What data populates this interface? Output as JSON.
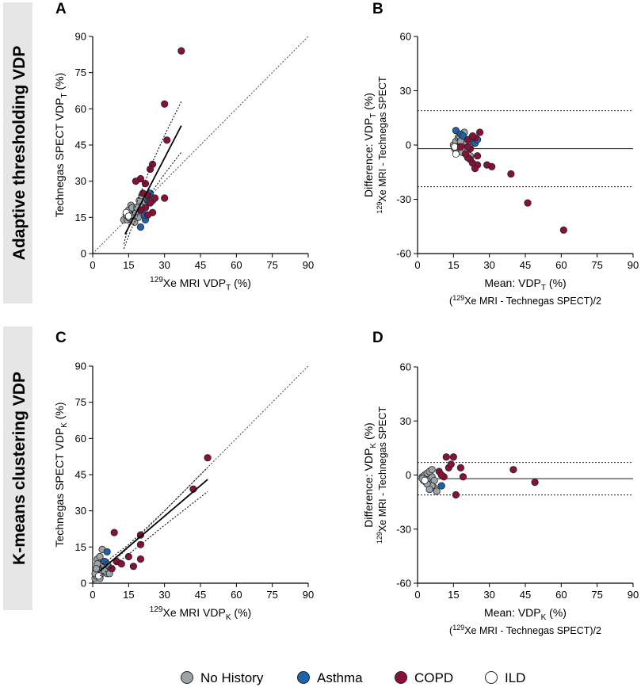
{
  "row_labels": {
    "top": "Adaptive thresholding VDP",
    "bottom": "K-means clustering VDP"
  },
  "colors": {
    "no_history": "#9ca4aa",
    "asthma": "#1c63ad",
    "copd": "#8a1038",
    "ild": "#ffffff",
    "row_band": "#e6e6e6"
  },
  "legend": {
    "items": [
      {
        "key": "no_history",
        "label": "No History"
      },
      {
        "key": "asthma",
        "label": "Asthma"
      },
      {
        "key": "copd",
        "label": "COPD"
      },
      {
        "key": "ild",
        "label": "ILD"
      }
    ]
  },
  "chart_data": [
    {
      "id": "A",
      "letter": "A",
      "type": "scatter",
      "title": "",
      "xlabel_pre": "129",
      "xlabel_main": "Xe MRI VDP",
      "xlabel_sub": "T",
      "xlabel_post": " (%)",
      "ylabel_main": "Technegas SPECT VDP",
      "ylabel_sub": "T",
      "ylabel_post": " (%)",
      "xlim": [
        0,
        90
      ],
      "ylim": [
        0,
        90
      ],
      "xticks": [
        0,
        15,
        30,
        45,
        60,
        75,
        90
      ],
      "yticks": [
        0,
        15,
        30,
        45,
        60,
        75,
        90
      ],
      "identity_line": true,
      "regression": {
        "x0": 13.5,
        "y0": 8,
        "x1": 37,
        "y1": 53
      },
      "ci_upper": [
        [
          13,
          4
        ],
        [
          16,
          15
        ],
        [
          20,
          25
        ],
        [
          25,
          38
        ],
        [
          30,
          49
        ],
        [
          37,
          63
        ]
      ],
      "ci_lower": [
        [
          13,
          2
        ],
        [
          16,
          10
        ],
        [
          20,
          18
        ],
        [
          25,
          26
        ],
        [
          30,
          33
        ],
        [
          37,
          42
        ]
      ],
      "points": {
        "no_history": [
          [
            13,
            14
          ],
          [
            14,
            16
          ],
          [
            15,
            18
          ],
          [
            16,
            20
          ],
          [
            14.5,
            14
          ],
          [
            16,
            14
          ],
          [
            17,
            16
          ],
          [
            18,
            17
          ],
          [
            17.5,
            13
          ],
          [
            19,
            15
          ],
          [
            20,
            18
          ],
          [
            21,
            20
          ],
          [
            19.5,
            22
          ],
          [
            20.5,
            24
          ],
          [
            22,
            21
          ],
          [
            16.5,
            19
          ],
          [
            18.5,
            19
          ],
          [
            15,
            15
          ]
        ],
        "asthma": [
          [
            20,
            11
          ],
          [
            22,
            14
          ],
          [
            24,
            25
          ],
          [
            21.5,
            16
          ],
          [
            23,
            22
          ],
          [
            25,
            22
          ]
        ],
        "copd": [
          [
            37,
            84
          ],
          [
            30,
            62
          ],
          [
            31,
            47
          ],
          [
            25,
            37
          ],
          [
            24,
            35
          ],
          [
            20,
            31
          ],
          [
            18,
            30
          ],
          [
            22,
            29
          ],
          [
            21,
            25
          ],
          [
            23,
            24
          ],
          [
            26,
            23
          ],
          [
            30,
            23
          ],
          [
            24,
            21
          ],
          [
            22,
            19
          ],
          [
            20,
            18
          ],
          [
            25,
            17
          ],
          [
            23,
            16
          ]
        ],
        "ild": [
          [
            14,
            17
          ],
          [
            15,
            15.5
          ]
        ]
      }
    },
    {
      "id": "B",
      "letter": "B",
      "type": "scatter",
      "title": "",
      "xlabel_main": "Mean: VDP",
      "xlabel_sub": "T",
      "xlabel_post": " (%)",
      "xlabel_line2_pre": "(",
      "xlabel_line2_sup": "129",
      "xlabel_line2_post": "Xe MRI - Technegas SPECT)/2",
      "ylabel_line1_main": "Difference: VDP",
      "ylabel_line1_sub": "T",
      "ylabel_line1_post": " (%)",
      "ylabel_line2_sup": "129",
      "ylabel_line2_post": "Xe MRI - Technegas SPECT",
      "xlim": [
        0,
        90
      ],
      "ylim": [
        -60,
        60
      ],
      "xticks": [
        0,
        15,
        30,
        45,
        60,
        75,
        90
      ],
      "yticks": [
        -60,
        -30,
        0,
        30,
        60
      ],
      "mean_bias": -2,
      "loa": [
        19,
        -23
      ],
      "points": {
        "no_history": [
          [
            15,
            0
          ],
          [
            16,
            2
          ],
          [
            17,
            4
          ],
          [
            15.5,
            -2
          ],
          [
            16.5,
            -3
          ],
          [
            17,
            -1
          ],
          [
            18,
            3
          ],
          [
            19,
            1
          ],
          [
            18.5,
            -4
          ],
          [
            20,
            -2
          ],
          [
            21,
            -3
          ],
          [
            22,
            -6
          ],
          [
            17.5,
            5
          ],
          [
            19.5,
            7
          ],
          [
            16,
            -1
          ],
          [
            20,
            2
          ],
          [
            18,
            2
          ]
        ],
        "asthma": [
          [
            16,
            8
          ],
          [
            18,
            6
          ],
          [
            19,
            5
          ],
          [
            23,
            2
          ],
          [
            24,
            1
          ],
          [
            25,
            3
          ]
        ],
        "copd": [
          [
            61,
            -47
          ],
          [
            46,
            -32
          ],
          [
            39,
            -16
          ],
          [
            31,
            -12
          ],
          [
            29,
            -11
          ],
          [
            25,
            -11
          ],
          [
            24,
            -13
          ],
          [
            23,
            -10
          ],
          [
            22,
            -8
          ],
          [
            21,
            -7
          ],
          [
            20,
            -5
          ],
          [
            22,
            -2
          ],
          [
            21,
            -1
          ],
          [
            26,
            7
          ],
          [
            24,
            4
          ],
          [
            23,
            5
          ],
          [
            18,
            -1
          ],
          [
            21,
            3
          ],
          [
            25,
            -6
          ]
        ],
        "ild": [
          [
            15.5,
            -1
          ],
          [
            16,
            -5
          ]
        ]
      }
    },
    {
      "id": "C",
      "letter": "C",
      "type": "scatter",
      "title": "",
      "xlabel_pre": "129",
      "xlabel_main": "Xe MRI VDP",
      "xlabel_sub": "K",
      "xlabel_post": " (%)",
      "ylabel_main": "Technegas SPECT VDP",
      "ylabel_sub": "K",
      "ylabel_post": " (%)",
      "xlim": [
        0,
        90
      ],
      "ylim": [
        0,
        90
      ],
      "xticks": [
        0,
        15,
        30,
        45,
        60,
        75,
        90
      ],
      "yticks": [
        0,
        15,
        30,
        45,
        60,
        75,
        90
      ],
      "identity_line": true,
      "regression": {
        "x0": 3,
        "y0": 5,
        "x1": 48,
        "y1": 43
      },
      "ci_upper": [
        [
          3,
          7
        ],
        [
          15,
          16
        ],
        [
          30,
          30
        ],
        [
          48,
          48
        ]
      ],
      "ci_lower": [
        [
          3,
          3
        ],
        [
          15,
          12
        ],
        [
          30,
          24
        ],
        [
          48,
          38
        ]
      ],
      "points": {
        "no_history": [
          [
            1,
            2
          ],
          [
            1.5,
            3
          ],
          [
            2,
            4
          ],
          [
            2.5,
            5
          ],
          [
            3,
            3
          ],
          [
            3.5,
            4
          ],
          [
            4,
            5
          ],
          [
            5,
            6
          ],
          [
            6,
            7
          ],
          [
            7,
            5
          ],
          [
            3,
            2
          ],
          [
            2,
            6
          ],
          [
            4,
            8
          ],
          [
            5,
            9
          ],
          [
            1,
            4
          ],
          [
            2,
            10
          ],
          [
            3,
            11
          ],
          [
            6,
            4
          ],
          [
            4,
            14
          ],
          [
            2,
            8
          ],
          [
            5,
            5
          ],
          [
            6,
            8
          ],
          [
            7,
            4
          ],
          [
            1.5,
            6
          ]
        ],
        "asthma": [
          [
            6,
            13
          ],
          [
            5,
            9
          ]
        ],
        "copd": [
          [
            48,
            52
          ],
          [
            42,
            39
          ],
          [
            20,
            20
          ],
          [
            9,
            21
          ],
          [
            15,
            11
          ],
          [
            20,
            16
          ],
          [
            17,
            7
          ],
          [
            20,
            10
          ],
          [
            10,
            9
          ],
          [
            8,
            6
          ],
          [
            12,
            8
          ]
        ],
        "ild": [
          [
            2.5,
            3
          ]
        ]
      }
    },
    {
      "id": "D",
      "letter": "D",
      "type": "scatter",
      "title": "",
      "xlabel_main": "Mean: VDP",
      "xlabel_sub": "K",
      "xlabel_post": " (%)",
      "xlabel_line2_pre": "(",
      "xlabel_line2_sup": "129",
      "xlabel_line2_post": "Xe MRI - Technegas SPECT)/2",
      "ylabel_line1_main": "Difference: VDP",
      "ylabel_line1_sub": "K",
      "ylabel_line1_post": " (%)",
      "ylabel_line2_sup": "129",
      "ylabel_line2_post": "Xe MRI - Technegas SPECT",
      "xlim": [
        0,
        90
      ],
      "ylim": [
        -60,
        60
      ],
      "xticks": [
        0,
        15,
        30,
        45,
        60,
        75,
        90
      ],
      "yticks": [
        -60,
        -30,
        0,
        30,
        60
      ],
      "mean_bias": -2,
      "loa": [
        7,
        -11
      ],
      "points": {
        "no_history": [
          [
            2,
            -1
          ],
          [
            2.5,
            -3
          ],
          [
            3,
            -2
          ],
          [
            3.5,
            -4
          ],
          [
            4,
            -1
          ],
          [
            4.5,
            -3
          ],
          [
            5,
            -2
          ],
          [
            5.5,
            -5
          ],
          [
            6,
            -1
          ],
          [
            7,
            -3
          ],
          [
            3,
            0
          ],
          [
            4,
            1
          ],
          [
            5,
            2
          ],
          [
            6,
            3
          ],
          [
            7,
            -7
          ],
          [
            8,
            -9
          ],
          [
            6,
            -6
          ],
          [
            2,
            -2
          ],
          [
            4,
            -5
          ],
          [
            5,
            -8
          ]
        ],
        "asthma": [
          [
            10,
            -6
          ]
        ],
        "copd": [
          [
            12,
            10
          ],
          [
            15,
            10
          ],
          [
            13,
            4
          ],
          [
            18,
            4
          ],
          [
            19,
            -1
          ],
          [
            16,
            -11
          ],
          [
            40,
            3
          ],
          [
            49,
            -4
          ],
          [
            9,
            2
          ],
          [
            11,
            -1
          ],
          [
            14,
            6
          ],
          [
            10,
            0
          ]
        ],
        "ild": [
          [
            3,
            -3
          ]
        ]
      }
    }
  ]
}
